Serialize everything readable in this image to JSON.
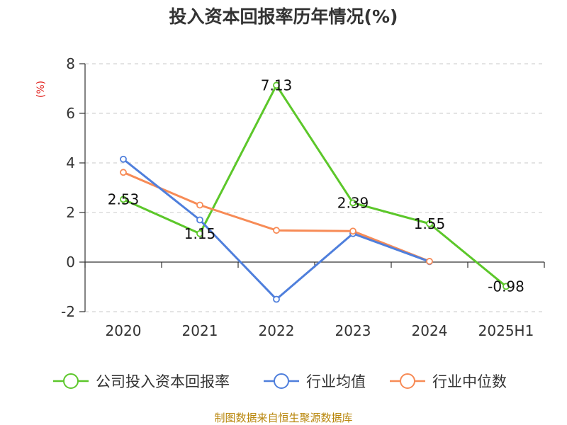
{
  "chart_data": {
    "type": "line",
    "title": "投入资本回报率历年情况(%)",
    "unit_label": "(%)",
    "categories": [
      "2020",
      "2021",
      "2022",
      "2023",
      "2024",
      "2025H1"
    ],
    "ylim": [
      -2,
      8
    ],
    "yticks": [
      -2,
      0,
      2,
      4,
      6,
      8
    ],
    "grid": true,
    "legend_position": "bottom",
    "series": [
      {
        "name": "公司投入资本回报率",
        "color": "#5cc72a",
        "values": [
          2.53,
          1.15,
          7.13,
          2.39,
          1.55,
          -0.98
        ],
        "labels": [
          "2.53",
          "1.15",
          "7.13",
          "2.39",
          "1.55",
          "-0.98"
        ]
      },
      {
        "name": "行业均值",
        "color": "#4f7fdc",
        "values": [
          4.15,
          1.7,
          -1.5,
          1.15,
          0.02,
          null
        ]
      },
      {
        "name": "行业中位数",
        "color": "#f78b56",
        "values": [
          3.62,
          2.3,
          1.28,
          1.25,
          0.03,
          null
        ]
      }
    ]
  },
  "source_text": "制图数据来自恒生聚源数据库"
}
